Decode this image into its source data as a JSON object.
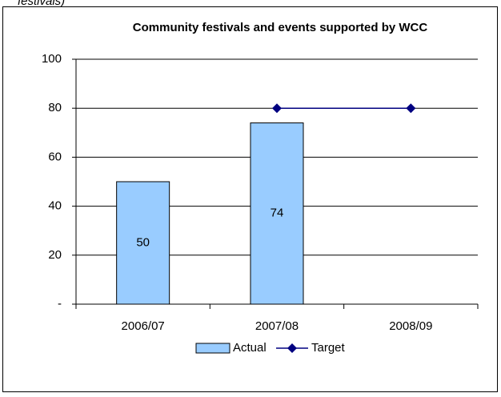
{
  "caption_fragment": "festivals)",
  "chart_data": {
    "type": "bar",
    "title": "Community festivals and events supported by WCC",
    "categories": [
      "2006/07",
      "2007/08",
      "2008/09"
    ],
    "series": [
      {
        "name": "Actual",
        "type": "bar",
        "color": "#99ccff",
        "values": [
          50,
          74,
          null
        ]
      },
      {
        "name": "Target",
        "type": "line",
        "color": "#000080",
        "values": [
          null,
          80,
          80
        ]
      }
    ],
    "ylim": [
      0,
      100
    ],
    "yticks": [
      {
        "value": 0,
        "label": "-"
      },
      20,
      40,
      60,
      80,
      100
    ],
    "grid": true,
    "legend": "bottom"
  }
}
